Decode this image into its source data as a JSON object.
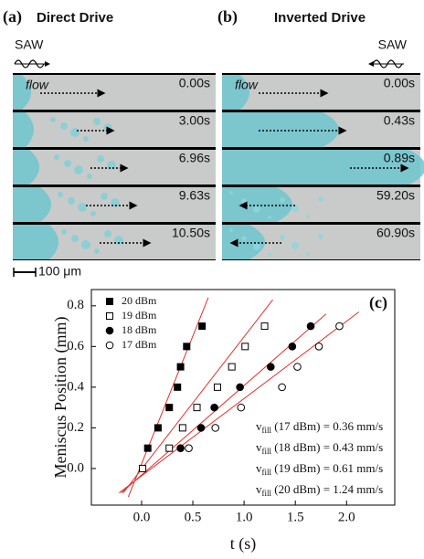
{
  "panels": [
    {
      "label": "(a)",
      "title": "Direct Drive",
      "saw": "SAW",
      "flow": "flow",
      "times": [
        "0.00s",
        "3.00s",
        "6.96s",
        "9.63s",
        "10.50s"
      ]
    },
    {
      "label": "(b)",
      "title": "Inverted Drive",
      "saw": "SAW",
      "flow": "flow",
      "times": [
        "0.00s",
        "0.43s",
        "0.89s",
        "59.20s",
        "60.90s"
      ]
    }
  ],
  "scale_bar": "100 μm",
  "chart_data": {
    "type": "scatter",
    "label": "(c)",
    "xlabel": "t (s)",
    "ylabel": "Meniscus Position (mm)",
    "xlim": [
      -0.49,
      2.47
    ],
    "ylim": [
      -0.18,
      0.88
    ],
    "xticks": [
      {
        "value": 0,
        "label": "0.0"
      },
      0.5,
      {
        "value": 1,
        "label": "1.0"
      },
      1.5,
      {
        "value": 2,
        "label": "2.0"
      }
    ],
    "yticks": [
      {
        "value": 0,
        "label": "0.0"
      },
      0.2,
      0.4,
      0.6,
      0.8
    ],
    "legend": "upper left",
    "series": [
      {
        "name": "20 dBm",
        "color": "#000000",
        "marker": "square",
        "filled": true,
        "x": [
          0.06,
          0.16,
          0.27,
          0.35,
          0.38,
          0.44,
          0.59
        ],
        "values": [
          0.1,
          0.2,
          0.3,
          0.4,
          0.5,
          0.6,
          0.7
        ]
      },
      {
        "name": "19 dBm",
        "color": "#000000",
        "marker": "square",
        "filled": false,
        "x": [
          0.01,
          0.27,
          0.4,
          0.54,
          0.74,
          0.88,
          1.01,
          1.2
        ],
        "values": [
          0,
          0.1,
          0.2,
          0.3,
          0.4,
          0.5,
          0.6,
          0.7
        ]
      },
      {
        "name": "18 dBm",
        "color": "#000000",
        "marker": "circle",
        "filled": true,
        "x": [
          0.38,
          0.58,
          0.71,
          0.96,
          1.26,
          1.47,
          1.65
        ],
        "values": [
          0.1,
          0.2,
          0.3,
          0.4,
          0.5,
          0.6,
          0.7
        ]
      },
      {
        "name": "17 dBm",
        "color": "#000000",
        "marker": "circle",
        "filled": false,
        "x": [
          0.46,
          0.72,
          0.97,
          1.37,
          1.52,
          1.73,
          1.93
        ],
        "values": [
          0.1,
          0.2,
          0.3,
          0.4,
          0.5,
          0.6,
          0.7
        ]
      }
    ],
    "fits": [
      {
        "color": "#e0302a",
        "x": [
          -0.13,
          0.65
        ],
        "values": [
          -0.14,
          0.84
        ]
      },
      {
        "color": "#e0302a",
        "x": [
          -0.18,
          1.28
        ],
        "values": [
          -0.12,
          0.83
        ]
      },
      {
        "color": "#e0302a",
        "x": [
          -0.2,
          1.8
        ],
        "values": [
          -0.12,
          0.76
        ]
      },
      {
        "color": "#e0302a",
        "x": [
          -0.22,
          2.12
        ],
        "values": [
          -0.12,
          0.77
        ]
      }
    ],
    "annotations": [
      {
        "symbol": "v",
        "subscript": "fill",
        "text": " (17 dBm) = 0.36 mm/s"
      },
      {
        "symbol": "v",
        "subscript": "fill",
        "text": " (18 dBm) = 0.43 mm/s"
      },
      {
        "symbol": "v",
        "subscript": "fill",
        "text": " (19 dBm) = 0.61 mm/s"
      },
      {
        "symbol": "v",
        "subscript": "fill",
        "text": " (20 dBm) = 1.24 mm/s"
      }
    ]
  }
}
